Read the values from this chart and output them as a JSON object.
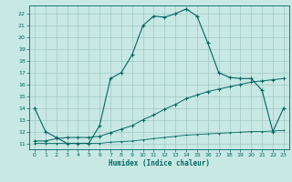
{
  "title": "",
  "xlabel": "Humidex (Indice chaleur)",
  "xlim": [
    -0.5,
    23.5
  ],
  "ylim": [
    10.5,
    22.7
  ],
  "xticks": [
    0,
    1,
    2,
    3,
    4,
    5,
    6,
    7,
    8,
    9,
    10,
    11,
    12,
    13,
    14,
    15,
    16,
    17,
    18,
    19,
    20,
    21,
    22,
    23
  ],
  "yticks": [
    11,
    12,
    13,
    14,
    15,
    16,
    17,
    18,
    19,
    20,
    21,
    22
  ],
  "bg_color": "#c8e8e4",
  "grid_color": "#a0c8c4",
  "line_color": "#006660",
  "line1_x": [
    0,
    1,
    2,
    3,
    4,
    5,
    6,
    7,
    8,
    9,
    10,
    11,
    12,
    13,
    14,
    15,
    16,
    17,
    18,
    19,
    20,
    21,
    22,
    23
  ],
  "line1_y": [
    14.0,
    12.0,
    11.5,
    11.0,
    11.0,
    11.0,
    12.5,
    16.5,
    17.0,
    18.5,
    21.0,
    21.8,
    21.7,
    22.0,
    22.4,
    21.8,
    19.5,
    17.0,
    16.6,
    16.5,
    16.5,
    15.5,
    12.0,
    14.0
  ],
  "line2_x": [
    0,
    1,
    2,
    3,
    4,
    5,
    6,
    7,
    8,
    9,
    10,
    11,
    12,
    13,
    14,
    15,
    16,
    17,
    18,
    19,
    20,
    21,
    22,
    23
  ],
  "line2_y": [
    11.2,
    11.2,
    11.4,
    11.5,
    11.5,
    11.5,
    11.6,
    11.9,
    12.2,
    12.5,
    13.0,
    13.4,
    13.9,
    14.3,
    14.8,
    15.1,
    15.4,
    15.6,
    15.8,
    16.0,
    16.2,
    16.3,
    16.4,
    16.5
  ],
  "line3_x": [
    0,
    1,
    2,
    3,
    4,
    5,
    6,
    7,
    8,
    9,
    10,
    11,
    12,
    13,
    14,
    15,
    16,
    17,
    18,
    19,
    20,
    21,
    22,
    23
  ],
  "line3_y": [
    11.0,
    11.0,
    11.0,
    11.0,
    11.0,
    11.0,
    11.0,
    11.1,
    11.15,
    11.2,
    11.3,
    11.4,
    11.5,
    11.6,
    11.7,
    11.75,
    11.8,
    11.85,
    11.9,
    11.95,
    12.0,
    12.0,
    12.05,
    12.1
  ]
}
